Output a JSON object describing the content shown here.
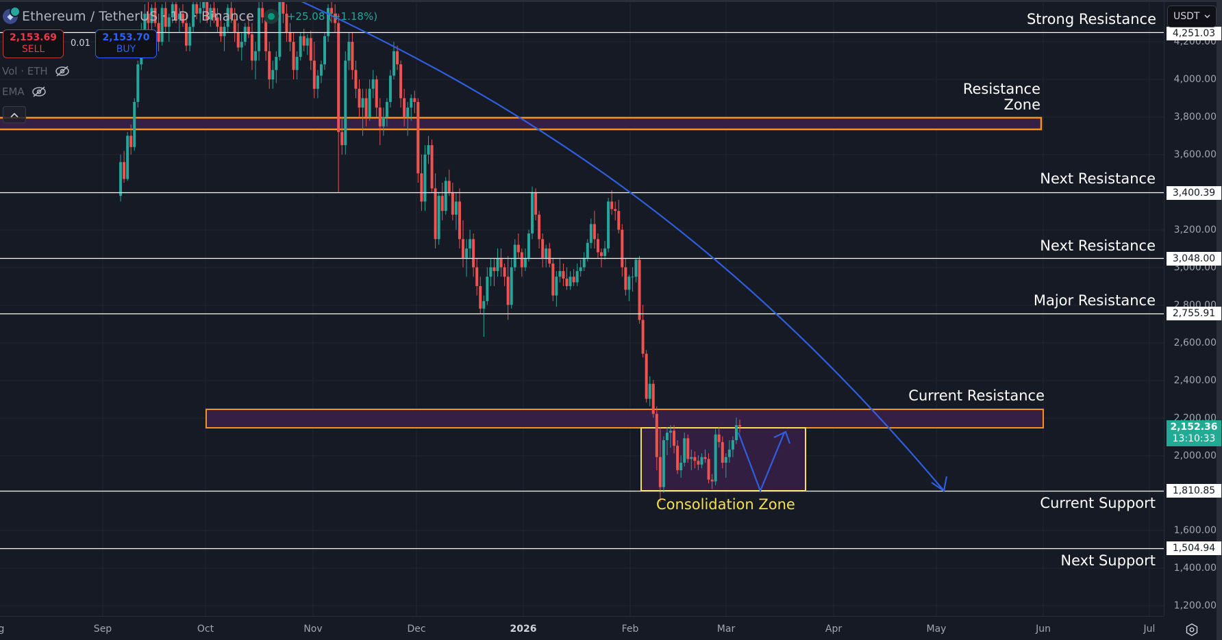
{
  "header": {
    "symbol_title": "Ethereum / TetherUS · 1D · Binance",
    "change_text": "+25.08 (+1.18%)",
    "symbol_icon": "ethereum-icon"
  },
  "trade": {
    "sell_price": "2,153.69",
    "sell_label": "SELL",
    "spread": "0.01",
    "buy_price": "2,153.70",
    "buy_label": "BUY"
  },
  "indicators": [
    {
      "label": "Vol · ETH",
      "icon": "eye-off-icon"
    },
    {
      "label": "EMA",
      "icon": "eye-off-icon"
    }
  ],
  "collapse_icon": "chevron-up-icon",
  "currency": {
    "label": "USDT",
    "icon": "chevron-down-icon"
  },
  "annotations": {
    "strong_resistance": "Strong Resistance",
    "resistance_zone_line1": "Resistance",
    "resistance_zone_line2": "Zone",
    "next_resistance_1": "Next Resistance",
    "next_resistance_2": "Next Resistance",
    "major_resistance": "Major Resistance",
    "current_resistance": "Current Resistance",
    "consolidation_zone": "Consolidation Zone",
    "current_support": "Current Support",
    "next_support": "Next Support"
  },
  "price_axis": {
    "ticks": [
      "4,200.00",
      "4,000.00",
      "3,800.00",
      "3,600.00",
      "3,200.00",
      "3,000.00",
      "2,800.00",
      "2,600.00",
      "2,400.00",
      "2,200.00",
      "2,000.00",
      "1,600.00",
      "1,400.00",
      "1,200.00"
    ],
    "levels": {
      "strong_resistance": "4,251.03",
      "next_resistance_1": "3,400.39",
      "next_resistance_2": "3,048.00",
      "major_resistance": "2,755.91",
      "current_support": "1,810.85",
      "next_support": "1,504.94"
    },
    "last_price": "2,152.36",
    "countdown": "13:10:33"
  },
  "time_axis": {
    "labels": [
      "g",
      "Sep",
      "Oct",
      "Nov",
      "Dec",
      "2026",
      "Feb",
      "Mar",
      "Apr",
      "May",
      "Jun",
      "Jul"
    ]
  },
  "settings_icon": "settings-icon",
  "colors": {
    "background": "#161a25",
    "grid": "#222633",
    "up": "#26a69a",
    "down": "#ef5350",
    "zone_border": "#f7931a",
    "zone_fill": "#351f45",
    "consolidation_border": "#f7e04b",
    "projection": "#2f5fe0",
    "level_line": "#ffffff",
    "last_price": "#22ab94"
  },
  "chart_data": {
    "type": "candlestick",
    "title": "Ethereum / TetherUS · 1D · Binance",
    "xlabel": "",
    "ylabel": "USDT",
    "ylim": [
      1100,
      4420
    ],
    "grid": true,
    "x_ticks": [
      "Sep",
      "Oct",
      "Nov",
      "Dec",
      "2026",
      "Feb",
      "Mar",
      "Apr",
      "May",
      "Jun",
      "Jul"
    ],
    "y_ticks": [
      1200,
      1400,
      1600,
      2000,
      2200,
      2400,
      2600,
      2800,
      3000,
      3200,
      3600,
      3800,
      4000,
      4200
    ],
    "last_price": 2152.36,
    "change": 25.08,
    "change_pct": 1.18,
    "horizontal_levels": [
      {
        "label": "Strong Resistance",
        "price": 4251.03
      },
      {
        "label": "Next Resistance",
        "price": 3400.39
      },
      {
        "label": "Next Resistance",
        "price": 3048.0
      },
      {
        "label": "Major Resistance",
        "price": 2755.91
      },
      {
        "label": "Current Support",
        "price": 1810.85
      },
      {
        "label": "Next Support",
        "price": 1504.94
      }
    ],
    "zones": [
      {
        "label": "Resistance Zone",
        "low": 3720,
        "high": 3790
      },
      {
        "label": "Current Resistance",
        "low": 2150,
        "high": 2250
      },
      {
        "label": "Consolidation Zone",
        "low": 1810,
        "high": 2150,
        "from": "Feb 4",
        "to": "Mar 22"
      }
    ],
    "projection": {
      "description": "Curved downtrend arrow from top-left ending at Current Support near early May; zigzag within consolidation dipping to support then rising toward resistance"
    },
    "candles_ohlc": [
      [
        3380,
        3600,
        3350,
        3560
      ],
      [
        3560,
        3620,
        3450,
        3470
      ],
      [
        3470,
        3720,
        3460,
        3700
      ],
      [
        3700,
        3760,
        3600,
        3640
      ],
      [
        3640,
        3900,
        3620,
        3880
      ],
      [
        3880,
        4100,
        3850,
        4080
      ],
      [
        4080,
        4300,
        4050,
        4250
      ],
      [
        4250,
        4400,
        4200,
        4350
      ],
      [
        4350,
        4420,
        4250,
        4300
      ],
      [
        4300,
        4400,
        4200,
        4380
      ],
      [
        4380,
        4450,
        4280,
        4300
      ],
      [
        4300,
        4350,
        4150,
        4200
      ],
      [
        4200,
        4400,
        4180,
        4380
      ],
      [
        4380,
        4420,
        4250,
        4280
      ],
      [
        4280,
        4350,
        4200,
        4330
      ],
      [
        4330,
        4420,
        4300,
        4400
      ],
      [
        4400,
        4450,
        4300,
        4320
      ],
      [
        4320,
        4380,
        4250,
        4350
      ],
      [
        4350,
        4400,
        4280,
        4300
      ],
      [
        4300,
        4350,
        4150,
        4180
      ],
      [
        4180,
        4300,
        4150,
        4280
      ],
      [
        4280,
        4420,
        4250,
        4400
      ],
      [
        4400,
        4450,
        4320,
        4350
      ],
      [
        4350,
        4420,
        4300,
        4380
      ],
      [
        4380,
        4450,
        4350,
        4420
      ],
      [
        4420,
        4450,
        4300,
        4320
      ],
      [
        4320,
        4400,
        4280,
        4380
      ],
      [
        4380,
        4420,
        4300,
        4330
      ],
      [
        4330,
        4380,
        4250,
        4280
      ],
      [
        4280,
        4350,
        4200,
        4230
      ],
      [
        4230,
        4300,
        4150,
        4280
      ],
      [
        4280,
        4400,
        4250,
        4380
      ],
      [
        4380,
        4420,
        4300,
        4320
      ],
      [
        4320,
        4380,
        4200,
        4250
      ],
      [
        4250,
        4300,
        4150,
        4170
      ],
      [
        4170,
        4250,
        4100,
        4200
      ],
      [
        4200,
        4300,
        4180,
        4280
      ],
      [
        4280,
        4350,
        4220,
        4240
      ],
      [
        4240,
        4300,
        4050,
        4100
      ],
      [
        4100,
        4200,
        4000,
        4150
      ],
      [
        4150,
        4420,
        4100,
        4380
      ],
      [
        4380,
        4450,
        4300,
        4330
      ],
      [
        4330,
        4350,
        4100,
        4150
      ],
      [
        4150,
        4200,
        3950,
        4000
      ],
      [
        4000,
        4100,
        3950,
        4050
      ],
      [
        4050,
        4150,
        3980,
        4120
      ],
      [
        4120,
        4450,
        4100,
        4420
      ],
      [
        4420,
        4450,
        4300,
        4350
      ],
      [
        4350,
        4400,
        4200,
        4250
      ],
      [
        4250,
        4300,
        4150,
        4200
      ],
      [
        4200,
        4250,
        4000,
        4050
      ],
      [
        4050,
        4150,
        4000,
        4120
      ],
      [
        4120,
        4250,
        4100,
        4230
      ],
      [
        4230,
        4270,
        4150,
        4180
      ],
      [
        4180,
        4240,
        4130,
        4220
      ],
      [
        4220,
        4260,
        4050,
        4100
      ],
      [
        4100,
        4200,
        3900,
        3950
      ],
      [
        3950,
        4050,
        3900,
        4020
      ],
      [
        4020,
        4100,
        3980,
        4080
      ],
      [
        4080,
        4250,
        4050,
        4230
      ],
      [
        4230,
        4400,
        4200,
        4380
      ],
      [
        4380,
        4420,
        4300,
        4350
      ],
      [
        4350,
        4400,
        4250,
        4300
      ],
      [
        4300,
        4350,
        3400,
        3720
      ],
      [
        3720,
        3800,
        3600,
        3650
      ],
      [
        3650,
        4150,
        3600,
        4100
      ],
      [
        4100,
        4250,
        4050,
        4200
      ],
      [
        4200,
        4250,
        4000,
        4050
      ],
      [
        4050,
        4100,
        3900,
        3950
      ],
      [
        3950,
        4000,
        3800,
        3850
      ],
      [
        3850,
        3950,
        3700,
        3900
      ],
      [
        3900,
        3950,
        3750,
        3800
      ],
      [
        3800,
        4000,
        3780,
        3950
      ],
      [
        3950,
        4050,
        3900,
        4000
      ],
      [
        4000,
        4020,
        3800,
        3850
      ],
      [
        3850,
        3900,
        3650,
        3750
      ],
      [
        3750,
        3850,
        3700,
        3800
      ],
      [
        3800,
        3900,
        3750,
        3880
      ],
      [
        3880,
        4050,
        3850,
        4020
      ],
      [
        4020,
        4200,
        4000,
        4150
      ],
      [
        4150,
        4180,
        4050,
        4080
      ],
      [
        4080,
        4100,
        3850,
        3900
      ],
      [
        3900,
        3950,
        3750,
        3800
      ],
      [
        3800,
        3880,
        3700,
        3850
      ],
      [
        3850,
        3920,
        3780,
        3900
      ],
      [
        3900,
        3940,
        3820,
        3880
      ],
      [
        3880,
        3900,
        3450,
        3500
      ],
      [
        3500,
        3600,
        3300,
        3350
      ],
      [
        3350,
        3650,
        3300,
        3600
      ],
      [
        3600,
        3700,
        3550,
        3650
      ],
      [
        3650,
        3680,
        3400,
        3420
      ],
      [
        3420,
        3500,
        3100,
        3150
      ],
      [
        3150,
        3400,
        3120,
        3380
      ],
      [
        3380,
        3450,
        3250,
        3300
      ],
      [
        3300,
        3480,
        3280,
        3460
      ],
      [
        3460,
        3520,
        3380,
        3400
      ],
      [
        3400,
        3450,
        3250,
        3280
      ],
      [
        3280,
        3400,
        3200,
        3350
      ],
      [
        3350,
        3420,
        3100,
        3150
      ],
      [
        3150,
        3250,
        3000,
        3050
      ],
      [
        3050,
        3150,
        2950,
        3100
      ],
      [
        3100,
        3200,
        3050,
        3150
      ],
      [
        3150,
        3180,
        2950,
        3000
      ],
      [
        3000,
        3050,
        2850,
        2900
      ],
      [
        2900,
        2950,
        2750,
        2780
      ],
      [
        2780,
        2850,
        2630,
        2820
      ],
      [
        2820,
        3000,
        2800,
        2950
      ],
      [
        2950,
        3050,
        2900,
        3000
      ],
      [
        3000,
        3050,
        2900,
        2980
      ],
      [
        2980,
        3100,
        2950,
        3050
      ],
      [
        3050,
        3100,
        2950,
        3000
      ],
      [
        3000,
        3020,
        2900,
        2950
      ],
      [
        2950,
        3060,
        2720,
        2800
      ],
      [
        2800,
        3050,
        2780,
        3000
      ],
      [
        3000,
        3150,
        2980,
        3120
      ],
      [
        3120,
        3180,
        3050,
        3080
      ],
      [
        3080,
        3100,
        2950,
        3000
      ],
      [
        3000,
        3100,
        2980,
        3050
      ],
      [
        3050,
        3200,
        3030,
        3180
      ],
      [
        3180,
        3430,
        3150,
        3400
      ],
      [
        3400,
        3420,
        3250,
        3280
      ],
      [
        3280,
        3300,
        3100,
        3150
      ],
      [
        3150,
        3180,
        3000,
        3050
      ],
      [
        3050,
        3120,
        3000,
        3100
      ],
      [
        3100,
        3130,
        3000,
        3020
      ],
      [
        3020,
        3050,
        2820,
        2850
      ],
      [
        2850,
        2980,
        2790,
        2950
      ],
      [
        2950,
        3050,
        2920,
        2980
      ],
      [
        2980,
        3020,
        2900,
        2940
      ],
      [
        2940,
        3000,
        2880,
        2900
      ],
      [
        2900,
        2980,
        2880,
        2950
      ],
      [
        2950,
        2990,
        2900,
        2920
      ],
      [
        2920,
        3020,
        2900,
        2980
      ],
      [
        2980,
        3040,
        2950,
        3000
      ],
      [
        3000,
        3080,
        2980,
        3050
      ],
      [
        3050,
        3150,
        3030,
        3130
      ],
      [
        3130,
        3260,
        3100,
        3230
      ],
      [
        3230,
        3300,
        3100,
        3150
      ],
      [
        3150,
        3180,
        3050,
        3080
      ],
      [
        3080,
        3100,
        3000,
        3060
      ],
      [
        3060,
        3140,
        3040,
        3100
      ],
      [
        3100,
        3370,
        3080,
        3350
      ],
      [
        3350,
        3410,
        3280,
        3310
      ],
      [
        3310,
        3350,
        3250,
        3300
      ],
      [
        3300,
        3360,
        3180,
        3200
      ],
      [
        3200,
        3230,
        2950,
        3000
      ],
      [
        3000,
        3050,
        2850,
        2880
      ],
      [
        2880,
        2960,
        2820,
        2950
      ],
      [
        2950,
        3000,
        2870,
        2950
      ],
      [
        2950,
        3050,
        2920,
        3040
      ],
      [
        3040,
        3060,
        2700,
        2720
      ],
      [
        2720,
        2800,
        2520,
        2540
      ],
      [
        2540,
        2560,
        2280,
        2300
      ],
      [
        2300,
        2420,
        2260,
        2380
      ],
      [
        2380,
        2400,
        2200,
        2220
      ],
      [
        2220,
        2260,
        1920,
        1990
      ],
      [
        1990,
        2150,
        1750,
        1830
      ],
      [
        1830,
        2100,
        1800,
        2080
      ],
      [
        2080,
        2150,
        2000,
        2120
      ],
      [
        2120,
        2160,
        2040,
        2130
      ],
      [
        2130,
        2160,
        2010,
        2050
      ],
      [
        2050,
        2080,
        1900,
        1920
      ],
      [
        1920,
        2000,
        1880,
        1960
      ],
      [
        1960,
        2120,
        1940,
        2090
      ],
      [
        2090,
        2110,
        1960,
        1980
      ],
      [
        1980,
        2030,
        1920,
        1990
      ],
      [
        1990,
        2020,
        1930,
        1970
      ],
      [
        1970,
        2000,
        1920,
        1950
      ],
      [
        1950,
        2010,
        1930,
        1990
      ],
      [
        1990,
        2030,
        1960,
        1980
      ],
      [
        1980,
        2010,
        1850,
        1870
      ],
      [
        1870,
        1900,
        1820,
        1860
      ],
      [
        1860,
        2140,
        1840,
        2110
      ],
      [
        2110,
        2150,
        2040,
        2070
      ],
      [
        2070,
        2100,
        1930,
        1960
      ],
      [
        1960,
        2010,
        1880,
        1990
      ],
      [
        1990,
        2080,
        1960,
        2030
      ],
      [
        2030,
        2100,
        1990,
        2080
      ],
      [
        2080,
        2200,
        2060,
        2160
      ],
      [
        2160,
        2190,
        2120,
        2152
      ]
    ]
  }
}
